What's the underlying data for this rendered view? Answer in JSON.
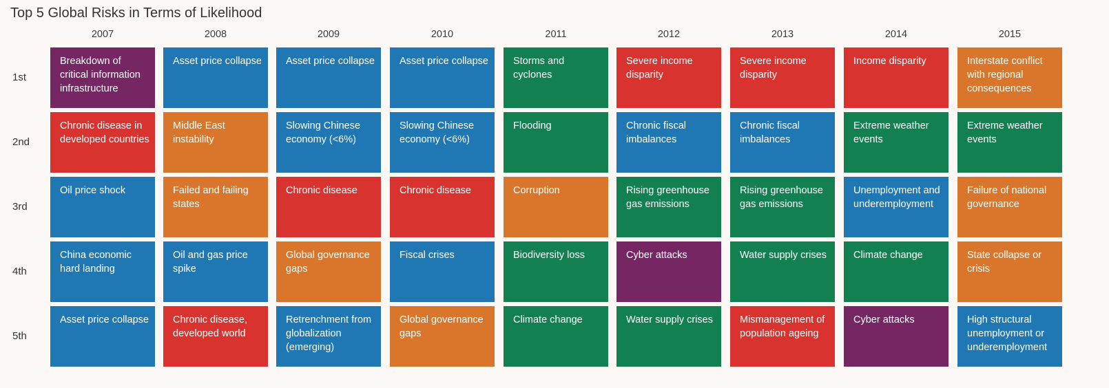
{
  "chart_data": {
    "type": "table",
    "title": "Top 5 Global Risks in Terms of Likelihood",
    "columns": [
      "2007",
      "2008",
      "2009",
      "2010",
      "2011",
      "2012",
      "2013",
      "2014",
      "2015"
    ],
    "rows": [
      "1st",
      "2nd",
      "3rd",
      "4th",
      "5th"
    ],
    "category_colors": {
      "economic": "#1f77b4",
      "geopolitical": "#d9762b",
      "societal": "#d93330",
      "environmental": "#128050",
      "technological": "#772664"
    },
    "cells": [
      [
        {
          "text": "Breakdown of critical information infrastructure",
          "category": "technological"
        },
        {
          "text": "Asset price collapse",
          "category": "economic"
        },
        {
          "text": "Asset price collapse",
          "category": "economic"
        },
        {
          "text": "Asset price collapse",
          "category": "economic"
        },
        {
          "text": "Storms and cyclones",
          "category": "environmental"
        },
        {
          "text": "Severe income disparity",
          "category": "societal"
        },
        {
          "text": "Severe income disparity",
          "category": "societal"
        },
        {
          "text": "Income disparity",
          "category": "societal"
        },
        {
          "text": "Interstate conflict with regional consequences",
          "category": "geopolitical"
        }
      ],
      [
        {
          "text": "Chronic disease in developed countries",
          "category": "societal"
        },
        {
          "text": "Middle East instability",
          "category": "geopolitical"
        },
        {
          "text": "Slowing Chinese economy (<6%)",
          "category": "economic"
        },
        {
          "text": "Slowing Chinese economy (<6%)",
          "category": "economic"
        },
        {
          "text": "Flooding",
          "category": "environmental"
        },
        {
          "text": "Chronic fiscal imbalances",
          "category": "economic"
        },
        {
          "text": "Chronic fiscal imbalances",
          "category": "economic"
        },
        {
          "text": "Extreme weather events",
          "category": "environmental"
        },
        {
          "text": "Extreme weather events",
          "category": "environmental"
        }
      ],
      [
        {
          "text": "Oil price shock",
          "category": "economic"
        },
        {
          "text": "Failed and failing states",
          "category": "geopolitical"
        },
        {
          "text": "Chronic disease",
          "category": "societal"
        },
        {
          "text": "Chronic disease",
          "category": "societal"
        },
        {
          "text": "Corruption",
          "category": "geopolitical"
        },
        {
          "text": "Rising greenhouse gas emissions",
          "category": "environmental"
        },
        {
          "text": "Rising greenhouse gas emissions",
          "category": "environmental"
        },
        {
          "text": "Unemployment and underemployment",
          "category": "economic"
        },
        {
          "text": "Failure of national governance",
          "category": "geopolitical"
        }
      ],
      [
        {
          "text": "China economic hard landing",
          "category": "economic"
        },
        {
          "text": "Oil and gas price spike",
          "category": "economic"
        },
        {
          "text": "Global governance gaps",
          "category": "geopolitical"
        },
        {
          "text": "Fiscal crises",
          "category": "economic"
        },
        {
          "text": "Biodiversity loss",
          "category": "environmental"
        },
        {
          "text": "Cyber attacks",
          "category": "technological"
        },
        {
          "text": "Water supply crises",
          "category": "environmental"
        },
        {
          "text": "Climate change",
          "category": "environmental"
        },
        {
          "text": "State collapse or crisis",
          "category": "geopolitical"
        }
      ],
      [
        {
          "text": "Asset price collapse",
          "category": "economic"
        },
        {
          "text": "Chronic disease, developed world",
          "category": "societal"
        },
        {
          "text": "Retrenchment from globalization (emerging)",
          "category": "economic"
        },
        {
          "text": "Global governance gaps",
          "category": "geopolitical"
        },
        {
          "text": "Climate change",
          "category": "environmental"
        },
        {
          "text": "Water supply crises",
          "category": "environmental"
        },
        {
          "text": "Mismanagement of population ageing",
          "category": "societal"
        },
        {
          "text": "Cyber attacks",
          "category": "technological"
        },
        {
          "text": "High structural unemployment or underemployment",
          "category": "economic"
        }
      ]
    ]
  }
}
